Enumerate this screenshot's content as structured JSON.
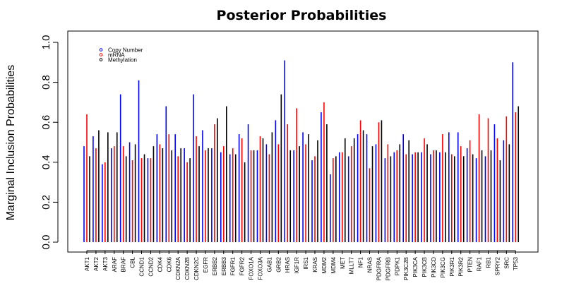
{
  "chart_data": {
    "type": "bar",
    "title": "Posterior Probabilities",
    "xlabel": "",
    "ylabel": "Marginal Inclusion Probabilities",
    "ylim": [
      0,
      1.0
    ],
    "yticks": [
      "0.0",
      "0.2",
      "0.4",
      "0.6",
      "0.8",
      "1.0"
    ],
    "legend_position": "top-left",
    "grid": false,
    "categories": [
      "AKT1",
      "AKT2",
      "AKT3",
      "ARAF",
      "BRAF",
      "CBL",
      "CCND1",
      "CCND2",
      "CDK4",
      "CDK6",
      "CDKN2A",
      "CDKN2B",
      "CDKN2C",
      "EGFR",
      "ERBB2",
      "ERBB3",
      "FGFR1",
      "FGFR2",
      "FOXO1A",
      "FOXO3A",
      "GAB1",
      "GRB2",
      "HRAS",
      "IGF1R",
      "IRS1",
      "KRAS",
      "MDM2",
      "MDM4",
      "MET",
      "MLLT7",
      "NF1",
      "NRAS",
      "PDGFRA",
      "PDGFRB",
      "PDPK1",
      "PIK3C2B",
      "PIK3CA",
      "PIK3CB",
      "PIK3CD",
      "PIK3CG",
      "PIK3R1",
      "PIK3R2",
      "PTEN",
      "RAF1",
      "RB1",
      "SPRY2",
      "SRC",
      "TP53"
    ],
    "series": [
      {
        "name": "Copy Number",
        "color": "#0000ff",
        "values": [
          0.48,
          0.53,
          0.39,
          0.47,
          0.74,
          0.5,
          0.81,
          0.42,
          0.54,
          0.68,
          0.54,
          0.47,
          0.74,
          0.56,
          0.47,
          0.45,
          0.44,
          0.54,
          0.59,
          0.46,
          0.49,
          0.61,
          0.91,
          0.46,
          0.55,
          0.41,
          0.65,
          0.34,
          0.45,
          0.43,
          0.54,
          0.54,
          0.49,
          0.42,
          0.45,
          0.54,
          0.44,
          0.45,
          0.44,
          0.45,
          0.55,
          0.55,
          0.47,
          0.42,
          0.43,
          0.59,
          0.51,
          0.9
        ]
      },
      {
        "name": "mRNA",
        "color": "#ff0000",
        "values": [
          0.64,
          0.47,
          0.4,
          0.48,
          0.48,
          0.41,
          0.42,
          0.42,
          0.49,
          0.54,
          0.43,
          0.4,
          0.53,
          0.46,
          0.59,
          0.48,
          0.47,
          0.52,
          0.46,
          0.53,
          0.44,
          0.49,
          0.59,
          0.67,
          0.49,
          0.43,
          0.7,
          0.42,
          0.45,
          0.48,
          0.61,
          0.37,
          0.6,
          0.49,
          0.46,
          0.44,
          0.45,
          0.52,
          0.46,
          0.54,
          0.44,
          0.48,
          0.51,
          0.64,
          0.62,
          0.52,
          0.63,
          0.65
        ]
      },
      {
        "name": "Methylation",
        "color": "#000000",
        "values": [
          0.43,
          0.56,
          0.55,
          0.55,
          0.43,
          0.49,
          0.44,
          0.48,
          0.47,
          0.46,
          0.47,
          0.42,
          0.48,
          0.47,
          0.62,
          0.68,
          0.44,
          0.4,
          0.46,
          0.52,
          0.55,
          0.74,
          0.46,
          0.48,
          0.54,
          0.51,
          0.59,
          0.43,
          0.52,
          0.52,
          0.56,
          0.48,
          0.61,
          0.43,
          0.49,
          0.51,
          0.45,
          0.49,
          0.46,
          0.45,
          0.43,
          0.43,
          0.44,
          0.46,
          0.46,
          0.41,
          0.49,
          0.68
        ]
      }
    ]
  }
}
